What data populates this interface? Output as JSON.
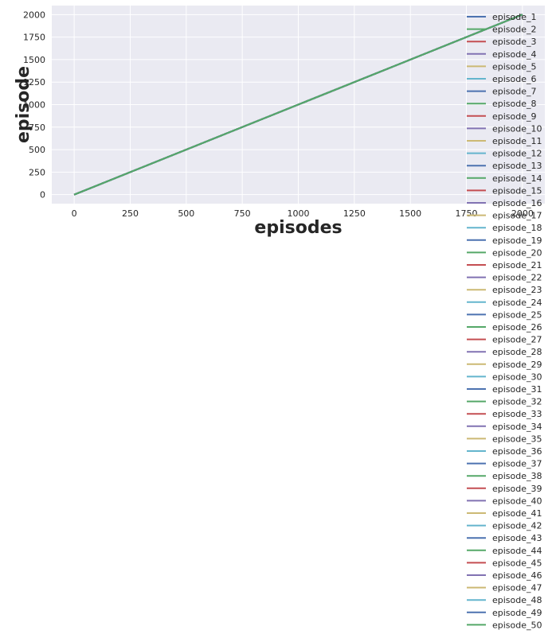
{
  "chart_data": {
    "type": "line",
    "title": "",
    "xlabel": "episodes",
    "ylabel": "episode",
    "xlim": [
      -100,
      2100
    ],
    "ylim": [
      -100,
      2100
    ],
    "xticks": [
      0,
      250,
      500,
      750,
      1000,
      1250,
      1500,
      1750,
      2000
    ],
    "yticks": [
      0,
      250,
      500,
      750,
      1000,
      1250,
      1500,
      1750,
      2000
    ],
    "grid": true,
    "legend_position": "right",
    "colors": [
      "#4c72b0",
      "#55a868",
      "#c44e52",
      "#8172b2",
      "#ccb974",
      "#64b5cd"
    ],
    "background": "#eaeaf2",
    "x": [
      0,
      2000
    ],
    "series": [
      {
        "name": "episode_1",
        "values": [
          0,
          2000
        ]
      },
      {
        "name": "episode_2",
        "values": [
          0,
          2000
        ]
      },
      {
        "name": "episode_3",
        "values": [
          0,
          2000
        ]
      },
      {
        "name": "episode_4",
        "values": [
          0,
          2000
        ]
      },
      {
        "name": "episode_5",
        "values": [
          0,
          2000
        ]
      },
      {
        "name": "episode_6",
        "values": [
          0,
          2000
        ]
      },
      {
        "name": "episode_7",
        "values": [
          0,
          2000
        ]
      },
      {
        "name": "episode_8",
        "values": [
          0,
          2000
        ]
      },
      {
        "name": "episode_9",
        "values": [
          0,
          2000
        ]
      },
      {
        "name": "episode_10",
        "values": [
          0,
          2000
        ]
      },
      {
        "name": "episode_11",
        "values": [
          0,
          2000
        ]
      },
      {
        "name": "episode_12",
        "values": [
          0,
          2000
        ]
      },
      {
        "name": "episode_13",
        "values": [
          0,
          2000
        ]
      },
      {
        "name": "episode_14",
        "values": [
          0,
          2000
        ]
      },
      {
        "name": "episode_15",
        "values": [
          0,
          2000
        ]
      },
      {
        "name": "episode_16",
        "values": [
          0,
          2000
        ]
      },
      {
        "name": "episode_17",
        "values": [
          0,
          2000
        ]
      },
      {
        "name": "episode_18",
        "values": [
          0,
          2000
        ]
      },
      {
        "name": "episode_19",
        "values": [
          0,
          2000
        ]
      },
      {
        "name": "episode_20",
        "values": [
          0,
          2000
        ]
      },
      {
        "name": "episode_21",
        "values": [
          0,
          2000
        ]
      },
      {
        "name": "episode_22",
        "values": [
          0,
          2000
        ]
      },
      {
        "name": "episode_23",
        "values": [
          0,
          2000
        ]
      },
      {
        "name": "episode_24",
        "values": [
          0,
          2000
        ]
      },
      {
        "name": "episode_25",
        "values": [
          0,
          2000
        ]
      },
      {
        "name": "episode_26",
        "values": [
          0,
          2000
        ]
      },
      {
        "name": "episode_27",
        "values": [
          0,
          2000
        ]
      },
      {
        "name": "episode_28",
        "values": [
          0,
          2000
        ]
      },
      {
        "name": "episode_29",
        "values": [
          0,
          2000
        ]
      },
      {
        "name": "episode_30",
        "values": [
          0,
          2000
        ]
      },
      {
        "name": "episode_31",
        "values": [
          0,
          2000
        ]
      },
      {
        "name": "episode_32",
        "values": [
          0,
          2000
        ]
      },
      {
        "name": "episode_33",
        "values": [
          0,
          2000
        ]
      },
      {
        "name": "episode_34",
        "values": [
          0,
          2000
        ]
      },
      {
        "name": "episode_35",
        "values": [
          0,
          2000
        ]
      },
      {
        "name": "episode_36",
        "values": [
          0,
          2000
        ]
      },
      {
        "name": "episode_37",
        "values": [
          0,
          2000
        ]
      },
      {
        "name": "episode_38",
        "values": [
          0,
          2000
        ]
      },
      {
        "name": "episode_39",
        "values": [
          0,
          2000
        ]
      },
      {
        "name": "episode_40",
        "values": [
          0,
          2000
        ]
      },
      {
        "name": "episode_41",
        "values": [
          0,
          2000
        ]
      },
      {
        "name": "episode_42",
        "values": [
          0,
          2000
        ]
      },
      {
        "name": "episode_43",
        "values": [
          0,
          2000
        ]
      },
      {
        "name": "episode_44",
        "values": [
          0,
          2000
        ]
      },
      {
        "name": "episode_45",
        "values": [
          0,
          2000
        ]
      },
      {
        "name": "episode_46",
        "values": [
          0,
          2000
        ]
      },
      {
        "name": "episode_47",
        "values": [
          0,
          2000
        ]
      },
      {
        "name": "episode_48",
        "values": [
          0,
          2000
        ]
      },
      {
        "name": "episode_49",
        "values": [
          0,
          2000
        ]
      },
      {
        "name": "episode_50",
        "values": [
          0,
          2000
        ]
      }
    ]
  }
}
